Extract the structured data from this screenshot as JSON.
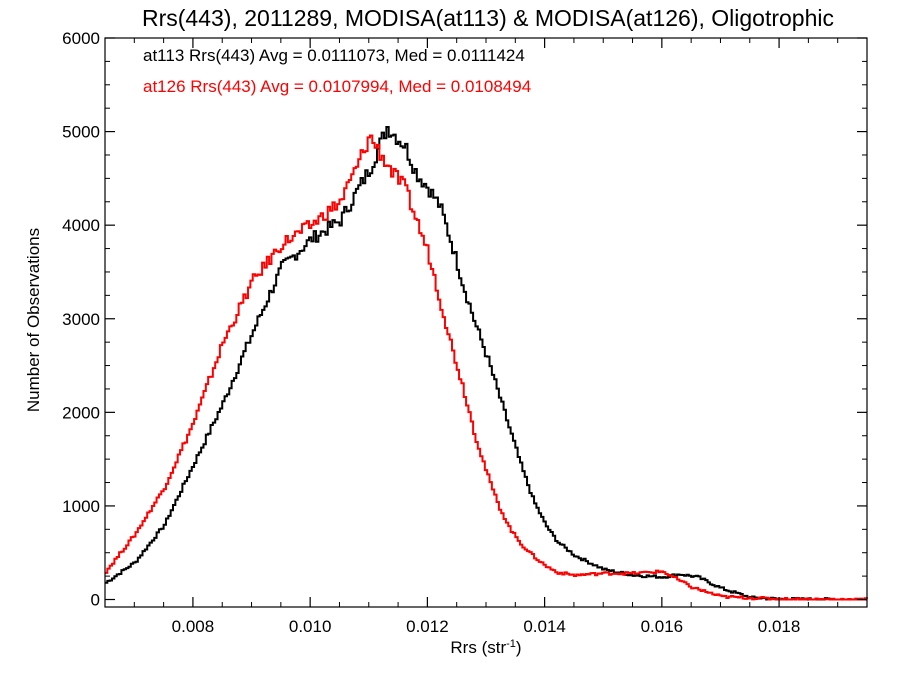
{
  "chart_data": {
    "type": "line",
    "title": "Rrs(443), 2011289, MODISA(at113) & MODISA(at126), Oligotrophic",
    "xlabel": "Rrs (str",
    "xlabel_sup": "-1",
    "xlabel_tail": ")",
    "ylabel": "Number of Observations",
    "xlim": [
      0.0065,
      0.0195
    ],
    "ylim": [
      -80,
      6000
    ],
    "xticks": [
      {
        "value": 0.008,
        "label": "0.008"
      },
      {
        "value": 0.01,
        "label": "0.010"
      },
      {
        "value": 0.012,
        "label": "0.012"
      },
      {
        "value": 0.014,
        "label": "0.014"
      },
      {
        "value": 0.016,
        "label": "0.016"
      },
      {
        "value": 0.018,
        "label": "0.018"
      }
    ],
    "yticks": [
      {
        "value": 0,
        "label": "0"
      },
      {
        "value": 1000,
        "label": "1000"
      },
      {
        "value": 2000,
        "label": "2000"
      },
      {
        "value": 3000,
        "label": "3000"
      },
      {
        "value": 4000,
        "label": "4000"
      },
      {
        "value": 5000,
        "label": "5000"
      },
      {
        "value": 6000,
        "label": "6000"
      }
    ],
    "grid": false,
    "annotations": [
      {
        "text": "at113 Rrs(443) Avg = 0.0111073, Med = 0.0111424",
        "color": "#000000"
      },
      {
        "text": "at126 Rrs(443) Avg = 0.0107994, Med = 0.0108494",
        "color": "#ff0000"
      }
    ],
    "series": [
      {
        "color": "#000000",
        "x": [
          0.0065,
          0.007,
          0.0075,
          0.008,
          0.0085,
          0.009,
          0.0095,
          0.01,
          0.0105,
          0.011,
          0.0113,
          0.0116,
          0.0118,
          0.012,
          0.0122,
          0.0124,
          0.0126,
          0.0128,
          0.013,
          0.0132,
          0.0134,
          0.0136,
          0.0138,
          0.014,
          0.0142,
          0.0145,
          0.015,
          0.0155,
          0.016,
          0.0163,
          0.0166,
          0.017,
          0.0175,
          0.018,
          0.019,
          0.0195
        ],
        "y": [
          180,
          400,
          800,
          1450,
          2100,
          2850,
          3550,
          3850,
          4050,
          4600,
          5050,
          4850,
          4550,
          4400,
          4200,
          3800,
          3350,
          2950,
          2600,
          2200,
          1800,
          1400,
          1050,
          800,
          620,
          470,
          320,
          260,
          240,
          270,
          240,
          120,
          20,
          5,
          0,
          0
        ]
      },
      {
        "color": "#ff0000",
        "x": [
          0.0065,
          0.007,
          0.0075,
          0.008,
          0.0085,
          0.009,
          0.0095,
          0.01,
          0.0105,
          0.0108,
          0.011,
          0.0112,
          0.0114,
          0.0116,
          0.0118,
          0.012,
          0.0122,
          0.0124,
          0.0126,
          0.0128,
          0.013,
          0.0132,
          0.0134,
          0.0136,
          0.0138,
          0.014,
          0.0142,
          0.0145,
          0.015,
          0.0155,
          0.016,
          0.0165,
          0.017,
          0.018,
          0.019,
          0.0195
        ],
        "y": [
          300,
          700,
          1200,
          1900,
          2750,
          3400,
          3800,
          4000,
          4250,
          4650,
          4950,
          4750,
          4550,
          4400,
          4050,
          3700,
          3200,
          2700,
          2250,
          1750,
          1350,
          1000,
          750,
          580,
          460,
          360,
          290,
          260,
          280,
          280,
          300,
          130,
          30,
          5,
          0,
          0
        ]
      }
    ]
  }
}
